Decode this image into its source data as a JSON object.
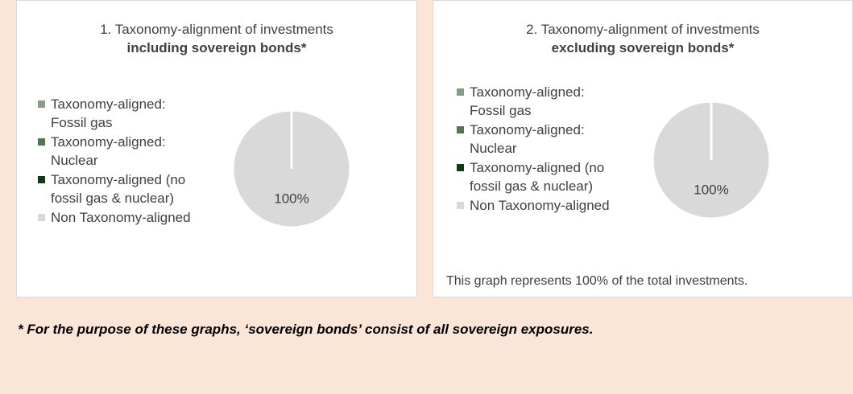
{
  "chart_data": [
    {
      "type": "pie",
      "title": "1. Taxonomy-alignment of investments",
      "subtitle": "including sovereign bonds*",
      "categories": [
        "Taxonomy-aligned: Fossil gas",
        "Taxonomy-aligned: Nuclear",
        "Taxonomy-aligned (no fossil gas & nuclear)",
        "Non Taxonomy-aligned"
      ],
      "values": [
        0,
        0,
        0,
        100
      ],
      "value_labels": [
        null,
        null,
        null,
        "100%"
      ],
      "colors": [
        "#879c88",
        "#4e784e",
        "#0d3b12",
        "#d9d9d9"
      ]
    },
    {
      "type": "pie",
      "title": "2. Taxonomy-alignment of investments",
      "subtitle": "excluding sovereign bonds*",
      "categories": [
        "Taxonomy-aligned: Fossil gas",
        "Taxonomy-aligned: Nuclear",
        "Taxonomy-aligned (no fossil gas & nuclear)",
        "Non Taxonomy-aligned"
      ],
      "values": [
        0,
        0,
        0,
        100
      ],
      "value_labels": [
        null,
        null,
        null,
        "100%"
      ],
      "colors": [
        "#879c88",
        "#4e784e",
        "#0d3b12",
        "#d9d9d9"
      ],
      "note": "This graph represents 100% of the total investments."
    }
  ],
  "footnote": "* For the purpose of these graphs, ‘sovereign bonds’ consist of all sovereign exposures."
}
